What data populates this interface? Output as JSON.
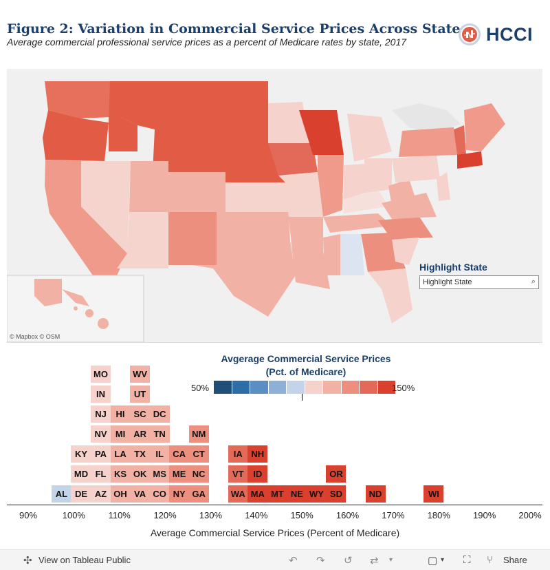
{
  "header": {
    "title": "Figure 2: Variation in Commercial Service Prices Across States",
    "subtitle": "Average commercial professional service prices as a percent of Medicare rates by state, 2017",
    "logo_text": "HCCI"
  },
  "map": {
    "attribution": "© Mapbox  © OSM",
    "highlight_label": "Highlight State",
    "highlight_placeholder": "Highlight State"
  },
  "legend": {
    "title_line1": "Avgerage Commercial Service Prices",
    "title_line2": "(Pct. of Medicare)",
    "low_label": "50%",
    "high_label": "150%",
    "colors": [
      "#1f4e79",
      "#2d6ea8",
      "#5b8fc4",
      "#8fb0d6",
      "#c3d3e8",
      "#f6d2cc",
      "#f2b1a5",
      "#ec8f7f",
      "#e36a58",
      "#d9412e"
    ]
  },
  "chart_data": {
    "type": "histogram",
    "xlabel": "Average Commercial Service Prices (Percent of Medicare)",
    "xlim": [
      85,
      205
    ],
    "ticks": [
      90,
      100,
      110,
      120,
      130,
      140,
      150,
      160,
      170,
      180,
      190,
      200
    ],
    "tick_labels": [
      "90%",
      "100%",
      "110%",
      "120%",
      "130%",
      "140%",
      "150%",
      "160%",
      "170%",
      "180%",
      "190%",
      "200%"
    ],
    "bin_width": 4.3,
    "bins": [
      {
        "center": 97.3,
        "states": [
          "AL"
        ]
      },
      {
        "center": 101.6,
        "states": [
          "DE",
          "MD",
          "KY"
        ]
      },
      {
        "center": 105.9,
        "states": [
          "AZ",
          "FL",
          "PA",
          "NV",
          "NJ",
          "IN",
          "MO"
        ]
      },
      {
        "center": 110.2,
        "states": [
          "OH",
          "KS",
          "LA",
          "MI",
          "HI"
        ]
      },
      {
        "center": 114.5,
        "states": [
          "VA",
          "OK",
          "TX",
          "AR",
          "SC",
          "UT",
          "WV"
        ]
      },
      {
        "center": 118.8,
        "states": [
          "CO",
          "MS",
          "IL",
          "TN",
          "DC"
        ]
      },
      {
        "center": 123.1,
        "states": [
          "NY",
          "ME",
          "CA"
        ]
      },
      {
        "center": 127.4,
        "states": [
          "GA",
          "NC",
          "CT",
          "NM"
        ]
      },
      {
        "center": 136.0,
        "states": [
          "WA",
          "VT",
          "IA"
        ]
      },
      {
        "center": 140.3,
        "states": [
          "MA",
          "ID",
          "NH"
        ]
      },
      {
        "center": 144.6,
        "states": [
          "MT"
        ]
      },
      {
        "center": 148.9,
        "states": [
          "NE"
        ]
      },
      {
        "center": 153.2,
        "states": [
          "WY"
        ]
      },
      {
        "center": 157.5,
        "states": [
          "SD",
          "OR"
        ]
      },
      {
        "center": 166.1,
        "states": [
          "ND"
        ]
      },
      {
        "center": 178.9,
        "states": [
          "WI"
        ]
      }
    ]
  },
  "toolbar": {
    "view_label": "View on Tableau Public",
    "share_label": "Share"
  }
}
